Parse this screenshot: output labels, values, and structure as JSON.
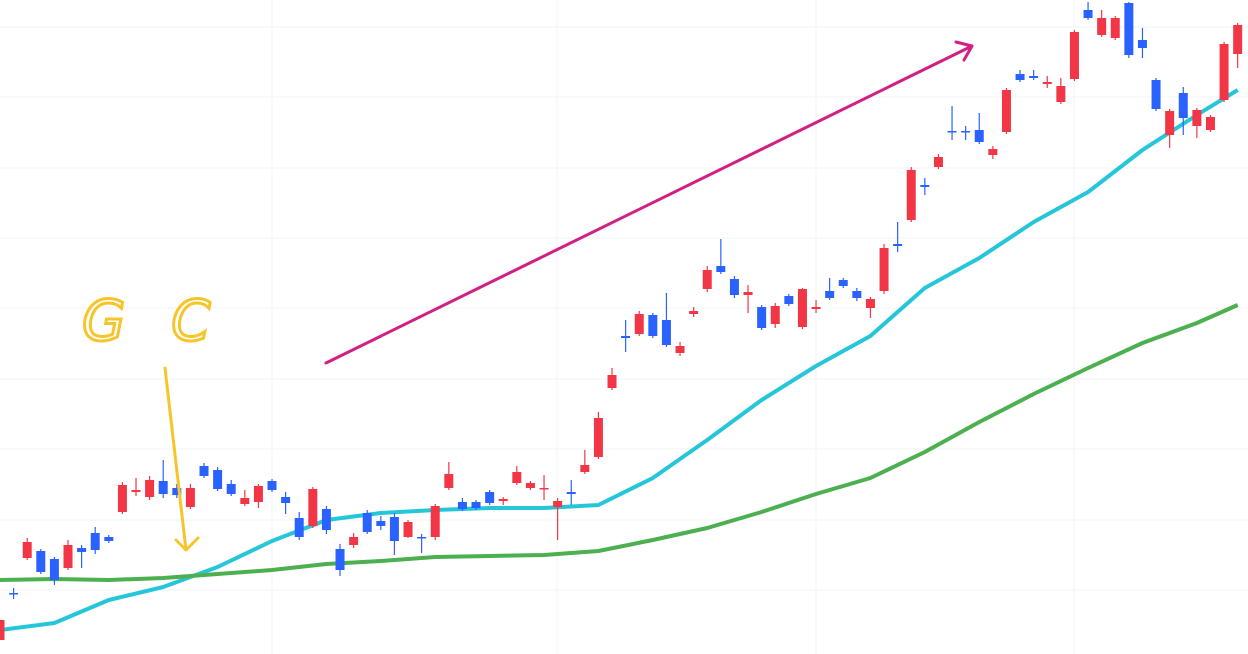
{
  "chart_data": {
    "type": "candlestick",
    "annotation": "G C",
    "annotation_color": "#f7c52a",
    "trend_color": "#d21f83",
    "up_color": "#f23645",
    "down_color": "#2962ff",
    "xlim": [
      0,
      91.76
    ],
    "ylim": [
      0,
      654
    ],
    "open": [
      14,
      61,
      96,
      103,
      95,
      86,
      106,
      121,
      117,
      142,
      162,
      157,
      173,
      166,
      147,
      188,
      184,
      170,
      150,
      152,
      173,
      157,
      136,
      128,
      145,
      105,
      109,
      141,
      133,
      137,
      117,
      117,
      117,
      166,
      152,
      152,
      162,
      153,
      171,
      166,
      165,
      147,
      162,
      182,
      197,
      266,
      318,
      320,
      339,
      334,
      301,
      340,
      365,
      388,
      375,
      359,
      347,
      330,
      358,
      327,
      345,
      363,
      374,
      363,
      346,
      363,
      410,
      434,
      469,
      487,
      523,
      523,
      524,
      499,
      522,
      580,
      578,
      570,
      552,
      575,
      644,
      619,
      616,
      651,
      614,
      574,
      519,
      561,
      528,
      524,
      554,
      600
    ],
    "high": [
      34,
      66,
      116,
      105,
      97,
      114,
      109,
      127,
      119,
      172,
      176,
      178,
      194,
      170,
      170,
      191,
      187,
      174,
      164,
      170,
      175,
      162,
      142,
      167,
      148,
      110,
      121,
      144,
      138,
      141,
      134,
      120,
      150,
      192,
      156,
      154,
      164,
      157,
      188,
      173,
      179,
      156,
      174,
      204,
      242,
      286,
      334,
      343,
      341,
      361,
      312,
      347,
      388,
      415,
      378,
      369,
      349,
      351,
      360,
      366,
      354,
      376,
      376,
      366,
      357,
      410,
      432,
      487,
      476,
      500,
      548,
      528,
      541,
      508,
      566,
      584,
      584,
      578,
      576,
      624,
      652,
      644,
      638,
      652,
      626,
      576,
      545,
      567,
      546,
      539,
      612,
      631
    ],
    "low": [
      14,
      55,
      94,
      80,
      69,
      84,
      86,
      100,
      111,
      140,
      158,
      154,
      156,
      156,
      145,
      176,
      163,
      158,
      148,
      146,
      162,
      140,
      114,
      126,
      120,
      78,
      106,
      120,
      124,
      99,
      116,
      101,
      114,
      164,
      143,
      144,
      149,
      149,
      169,
      164,
      154,
      114,
      149,
      180,
      195,
      264,
      302,
      318,
      316,
      307,
      298,
      337,
      362,
      380,
      356,
      341,
      324,
      326,
      348,
      325,
      341,
      354,
      366,
      353,
      336,
      360,
      402,
      432,
      459,
      485,
      514,
      514,
      510,
      495,
      520,
      572,
      574,
      566,
      550,
      573,
      634,
      617,
      614,
      596,
      596,
      543,
      506,
      519,
      516,
      522,
      552,
      586
    ],
    "close": [
      34,
      60,
      112,
      82,
      74,
      109,
      102,
      104,
      113,
      169,
      164,
      174,
      160,
      159,
      166,
      178,
      165,
      160,
      156,
      168,
      164,
      151,
      117,
      165,
      124,
      84,
      117,
      122,
      128,
      113,
      132,
      116,
      148,
      180,
      145,
      146,
      151,
      155,
      182,
      171,
      166,
      153,
      160,
      189,
      236,
      279,
      316,
      340,
      318,
      309,
      308,
      343,
      384,
      382,
      359,
      362,
      326,
      348,
      350,
      365,
      347,
      356,
      368,
      356,
      355,
      406,
      408,
      484,
      467,
      497,
      522,
      522,
      512,
      505,
      564,
      574,
      576,
      572,
      568,
      622,
      636,
      636,
      636,
      599,
      606,
      545,
      543,
      536,
      544,
      537,
      610,
      629
    ],
    "lines": [
      {
        "color": "#26c6da",
        "x": [
          0,
          4,
          8,
          12,
          16,
          20,
          24,
          28,
          32,
          36,
          40,
          44,
          48,
          52,
          56,
          60,
          64,
          68,
          72,
          76,
          80,
          84,
          88,
          91
        ],
        "values": [
          24,
          31,
          54,
          67,
          87,
          113,
          134,
          141,
          144,
          146,
          146,
          149,
          176,
          214,
          254,
          288,
          318,
          366,
          396,
          432,
          462,
          504,
          539,
          564
        ]
      },
      {
        "color": "#4caf50",
        "x": [
          0,
          4,
          8,
          12,
          16,
          20,
          24,
          28,
          32,
          36,
          40,
          44,
          48,
          52,
          56,
          60,
          64,
          68,
          72,
          76,
          80,
          84,
          88,
          91
        ],
        "values": [
          74,
          75,
          74,
          76,
          80,
          84,
          90,
          93,
          97,
          98,
          99,
          103,
          114,
          126,
          142,
          160,
          176,
          202,
          232,
          260,
          286,
          311,
          331,
          349
        ]
      }
    ]
  }
}
